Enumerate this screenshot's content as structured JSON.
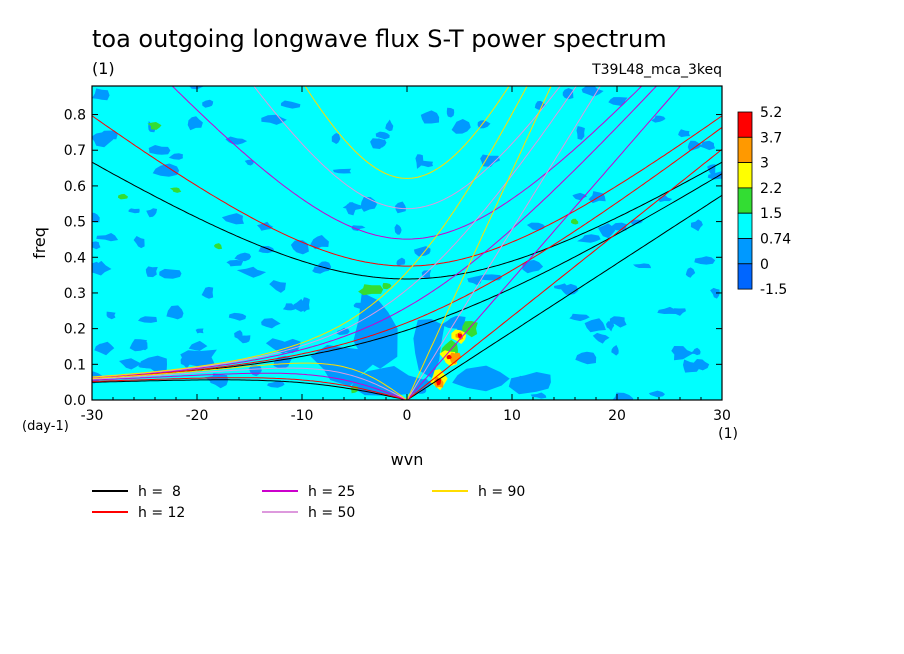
{
  "chart_data": {
    "type": "heatmap",
    "title": "toa outgoing longwave flux S-T power spectrum",
    "subtitle_left": "(1)",
    "subtitle_right": "T39L48_mca_3keq",
    "xlabel": "wvn",
    "ylabel": "freq",
    "x_unit": "(1)",
    "y_unit": "(day-1)",
    "xlim": [
      -30,
      30
    ],
    "ylim": [
      0,
      0.88
    ],
    "x_ticks": [
      -30,
      -20,
      -10,
      0,
      10,
      20,
      30
    ],
    "x_tick_labels": [
      "-30",
      "-20",
      "-10",
      "0",
      "10",
      "20",
      "30"
    ],
    "y_ticks": [
      0.0,
      0.1,
      0.2,
      0.3,
      0.4,
      0.5,
      0.6,
      0.7,
      0.8
    ],
    "y_tick_labels": [
      "0.0",
      "0.1",
      "0.2",
      "0.3",
      "0.4",
      "0.5",
      "0.6",
      "0.7",
      "0.8"
    ],
    "colorbar": {
      "levels": [
        "5.2",
        "3.7",
        "3",
        "2.2",
        "1.5",
        "0.74",
        "0",
        "-1.5"
      ],
      "colors": [
        "#ff0000",
        "#ff9900",
        "#ffff00",
        "#33dd33",
        "#00ffff",
        "#0099ff",
        "#0066ff"
      ]
    },
    "background_color": "#00ffff",
    "dispersion_curves": [
      {
        "name": "h =  8",
        "h": 8,
        "color": "#000000"
      },
      {
        "name": "h = 12",
        "h": 12,
        "color": "#ff0000"
      },
      {
        "name": "h = 25",
        "h": 25,
        "color": "#cc00cc"
      },
      {
        "name": "h = 50",
        "h": 50,
        "color": "#dd99dd"
      },
      {
        "name": "h = 90",
        "h": 90,
        "color": "#ffdd00"
      }
    ]
  }
}
